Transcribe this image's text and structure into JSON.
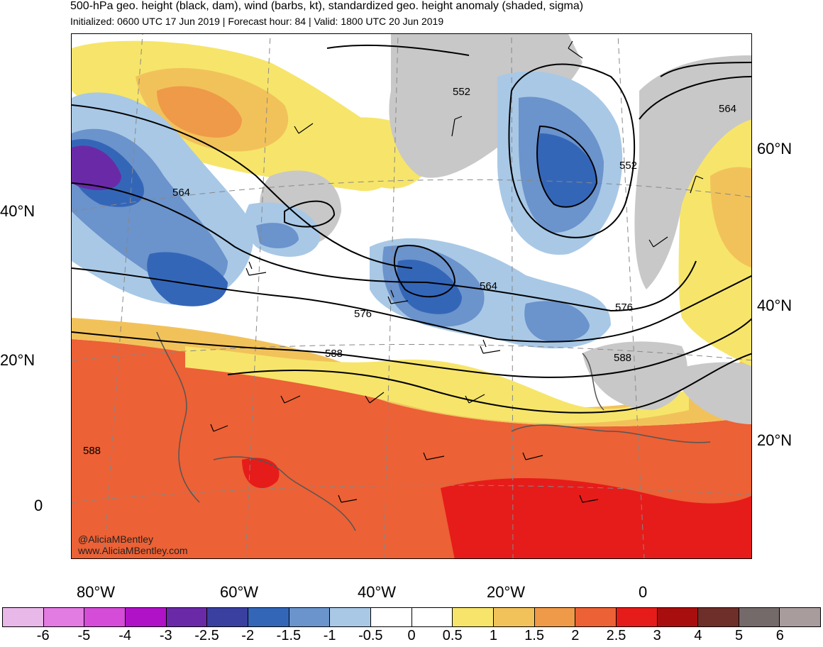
{
  "header": {
    "title": "500-hPa geo. height (black, dam), wind (barbs, kt), standardized geo. height anomaly (shaded, sigma)",
    "subtitle": "Initialized: 0600 UTC 17 Jun 2019 | Forecast hour: 84 | Valid: 1800 UTC 20 Jun 2019"
  },
  "axes": {
    "lat_left": [
      "40°N",
      "20°N",
      "0"
    ],
    "lat_right": [
      "60°N",
      "40°N",
      "20°N"
    ],
    "lon_bottom": [
      "80°W",
      "60°W",
      "40°W",
      "20°W",
      "0"
    ]
  },
  "contour_labels": [
    "552",
    "552",
    "564",
    "564",
    "564",
    "576",
    "576",
    "588",
    "588",
    "588"
  ],
  "credit": {
    "line1": "@AliciaMBentley",
    "line2": "www.AliciaMBentley.com"
  },
  "colorbar": {
    "colors": [
      "#e8b8e8",
      "#e27be2",
      "#d44cd8",
      "#b012c8",
      "#6a2aa8",
      "#3a40a0",
      "#3466b8",
      "#6b93cc",
      "#a8c8e6",
      "#ffffff",
      "#ffffff",
      "#f6e56a",
      "#f2c25a",
      "#ef9a48",
      "#ec6135",
      "#e61c1a",
      "#a80e0e",
      "#6e2e2a",
      "#746a6a",
      "#a89c9c"
    ],
    "labels": [
      "-6",
      "-5",
      "-4",
      "-3",
      "-2.5",
      "-2",
      "-1.5",
      "-1",
      "-0.5",
      "0",
      "0.5",
      "1",
      "1.5",
      "2",
      "2.5",
      "3",
      "4",
      "5",
      "6"
    ]
  },
  "colors": {
    "land_gray": "#c8c8c8",
    "contour": "#000000",
    "coastline": "#555555"
  }
}
